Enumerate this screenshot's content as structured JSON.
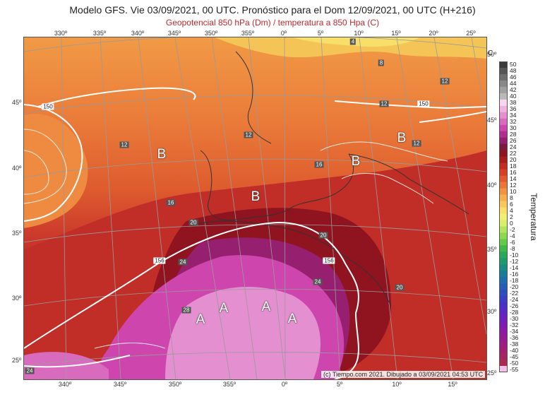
{
  "header": {
    "title": "Modelo GFS. Vie 03/09/2021, 00 UTC. Pronóstico para el Dom 12/09/2021, 00 UTC (H+216)",
    "subtitle": "Geopotencial 850 hPa (Dm) / temperatura a 850 Hpa (C)"
  },
  "axes": {
    "top": [
      "330º",
      "335º",
      "340º",
      "345º",
      "350º",
      "355º",
      "0º",
      "5º",
      "10º",
      "15º",
      "20º",
      "25º"
    ],
    "bottom": [
      "340º",
      "345º",
      "350º",
      "355º",
      "0º",
      "5º",
      "10º",
      "15º"
    ],
    "left": [
      "45º",
      "40º",
      "35º",
      "30º",
      "25º"
    ],
    "right": [
      "50º",
      "45º",
      "40º",
      "35º",
      "30º",
      "25º"
    ]
  },
  "legend": {
    "unit": "C",
    "name": "Temperatura",
    "labels": [
      "50",
      "48",
      "46",
      "44",
      "42",
      "40",
      "38",
      "36",
      "34",
      "32",
      "30",
      "28",
      "26",
      "24",
      "22",
      "20",
      "18",
      "16",
      "14",
      "12",
      "10",
      "8",
      "6",
      "4",
      "2",
      "0",
      "-2",
      "-4",
      "-6",
      "-8",
      "-10",
      "-12",
      "-14",
      "-16",
      "-18",
      "-20",
      "-22",
      "-24",
      "-26",
      "-28",
      "-30",
      "-32",
      "-34",
      "-36",
      "-38",
      "-40",
      "-45",
      "-50",
      "-55"
    ],
    "colors": [
      "#3a3a3a",
      "#555555",
      "#6e6e6e",
      "#888888",
      "#a0a0a0",
      "#b8b8b8",
      "#f6d7ef",
      "#eeb3df",
      "#e48fcf",
      "#d96bbf",
      "#ce46ad",
      "#b32f8f",
      "#961f6f",
      "#7a1a3f",
      "#8f1420",
      "#a81d1d",
      "#c32b23",
      "#d73f28",
      "#e35930",
      "#ec7538",
      "#f29242",
      "#f6ae4e",
      "#f8c85c",
      "#f7df6a",
      "#f0ee75",
      "#d8ef6c",
      "#b4e45c",
      "#8dd84e",
      "#63c947",
      "#3eb84a",
      "#28a95a",
      "#1d9a6e",
      "#188b83",
      "#197c97",
      "#1e6ca9",
      "#265cb7",
      "#2f4cbf",
      "#3b3dc4",
      "#4b30c6",
      "#5d27c4",
      "#6e20be",
      "#7d1cb3",
      "#8a1aa6",
      "#951a96",
      "#9d1c85",
      "#a31f74",
      "#a72463",
      "#a92a53",
      "#f3c2e8"
    ]
  },
  "pressure_labels": [
    "B",
    "B",
    "B",
    "B",
    "A",
    "A",
    "A",
    "A"
  ],
  "contour_labels": [
    "150",
    "150",
    "156",
    "156"
  ],
  "isotherm_labels": [
    "4",
    "8",
    "12",
    "12",
    "12",
    "16",
    "16",
    "20",
    "20",
    "20",
    "24",
    "24",
    "24",
    "28",
    "12",
    "12"
  ],
  "copyright": "(c) Tiempo.com 2021. Dibujado a 03/09/2021 04:53 UTC"
}
